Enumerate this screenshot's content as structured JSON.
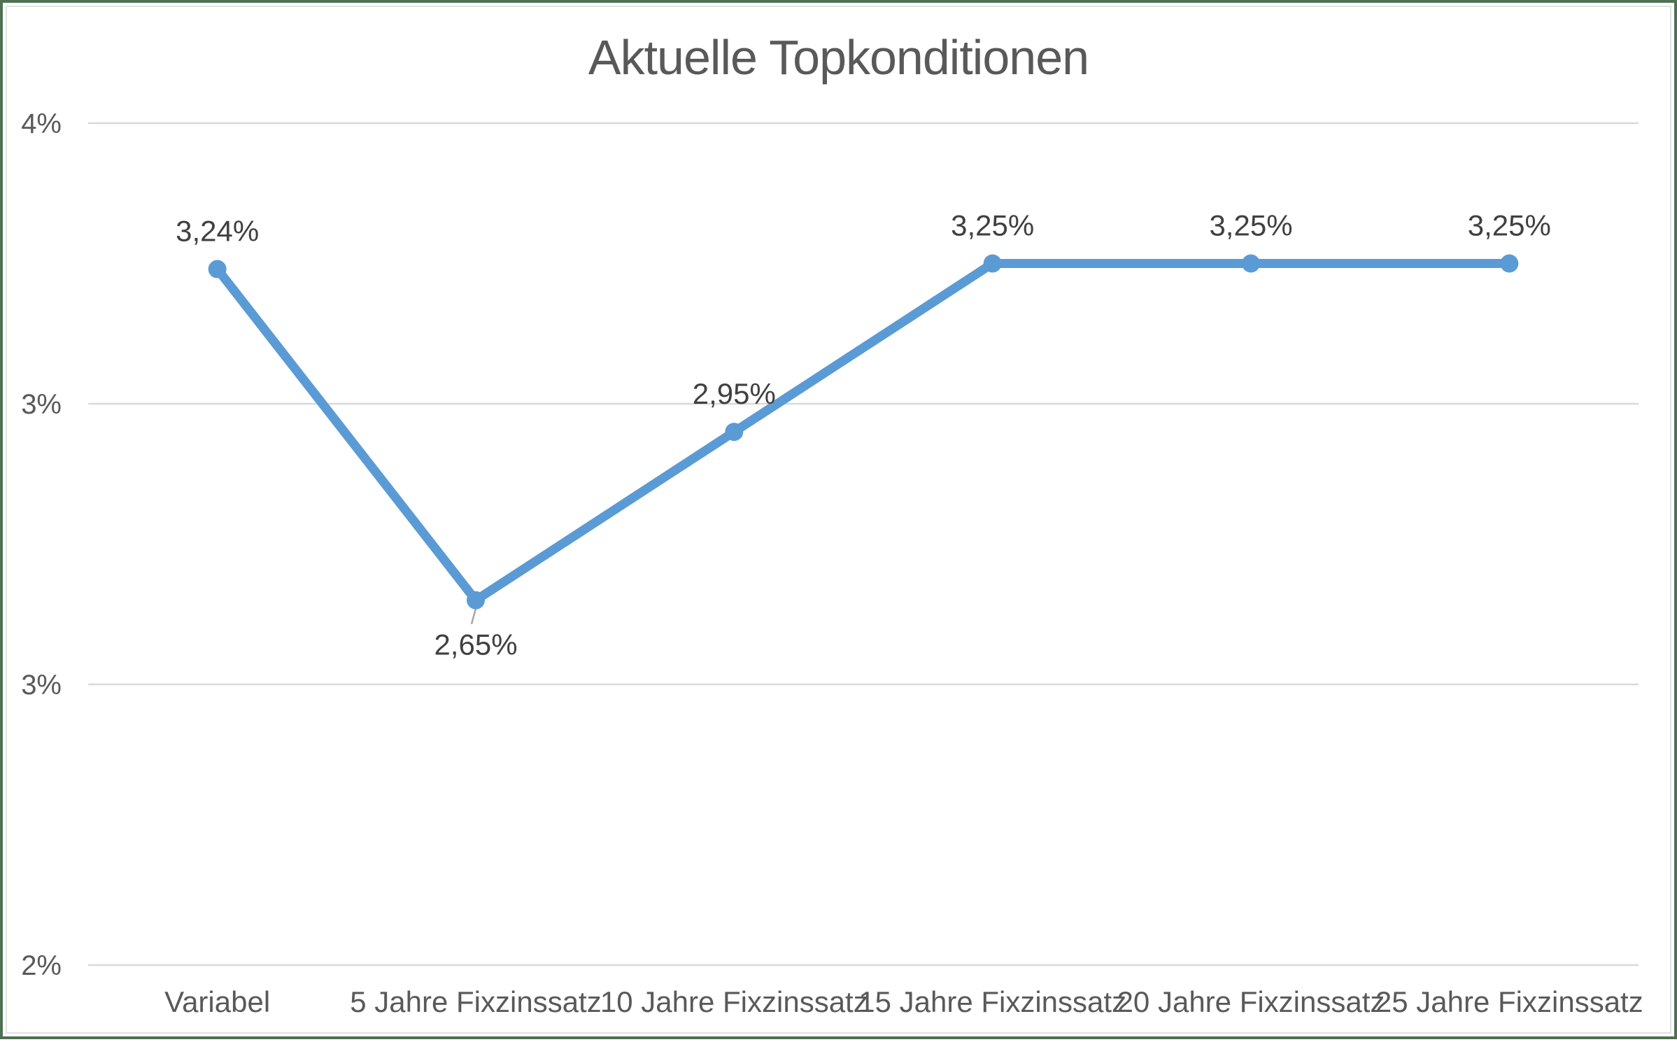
{
  "chart_data": {
    "type": "line",
    "title": "Aktuelle Topkonditionen",
    "categories": [
      "Variabel",
      "5 Jahre Fixzinssatz",
      "10 Jahre Fixzinssatz",
      "15 Jahre Fixzinssatz",
      "20 Jahre Fixzinssatz",
      "25 Jahre Fixzinssatz"
    ],
    "values": [
      3.24,
      2.65,
      2.95,
      3.25,
      3.25,
      3.25
    ],
    "data_labels": [
      "3,24%",
      "2,65%",
      "2,95%",
      "3,25%",
      "3,25%",
      "3,25%"
    ],
    "data_label_positions": [
      "above",
      "below",
      "above",
      "above",
      "above",
      "above"
    ],
    "xlabel": "",
    "ylabel": "",
    "y_axis": {
      "min": 2.0,
      "max": 3.5,
      "major_unit": 0.5,
      "tick_values": [
        3.5,
        3.0,
        2.5,
        2.0
      ],
      "tick_labels": [
        "4%",
        "3%",
        "3%",
        "2%"
      ]
    },
    "grid": "horizontal",
    "legend_position": "none",
    "colors": {
      "line": "#5B9BD5",
      "marker": "#5B9BD5",
      "gridline": "#D9D9D9",
      "tick_label": "#595959",
      "x_label": "#595959",
      "data_label": "#404040",
      "title": "#595959",
      "leader_line": "#A6A6A6",
      "frame_outer": "#4F7052",
      "frame_inner": "#DFE3DF"
    }
  }
}
